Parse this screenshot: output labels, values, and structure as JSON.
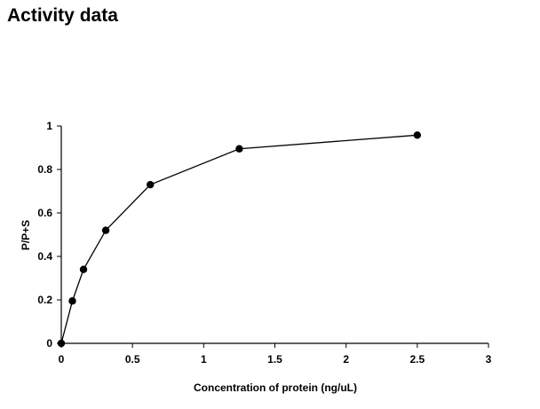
{
  "page": {
    "title": "Activity data"
  },
  "chart_data": {
    "type": "scatter",
    "title": "",
    "xlabel": "Concentration of protein (ng/uL)",
    "ylabel": "P/P+S",
    "xlim": [
      0,
      3
    ],
    "ylim": [
      0,
      1
    ],
    "x_ticks": [
      0,
      0.5,
      1,
      1.5,
      2,
      2.5,
      3
    ],
    "y_ticks": [
      0,
      0.2,
      0.4,
      0.6,
      0.8,
      1
    ],
    "x_tick_labels": [
      "0",
      "0.5",
      "1",
      "1.5",
      "2",
      "2.5",
      "3"
    ],
    "y_tick_labels": [
      "0",
      "0.2",
      "0.4",
      "0.6",
      "0.8",
      "1"
    ],
    "grid": false,
    "legend": "none",
    "connected": true,
    "series": [
      {
        "x": [
          0,
          0.078,
          0.156,
          0.3125,
          0.625,
          1.25,
          2.5
        ],
        "y": [
          0,
          0.195,
          0.34,
          0.52,
          0.73,
          0.895,
          0.958
        ],
        "color": "#000000"
      }
    ]
  }
}
